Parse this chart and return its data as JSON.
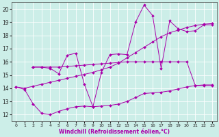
{
  "xlabel": "Windchill (Refroidissement éolien,°C)",
  "xlim": [
    -0.5,
    23.5
  ],
  "ylim": [
    11.5,
    20.5
  ],
  "xticks": [
    0,
    1,
    2,
    3,
    4,
    5,
    6,
    7,
    8,
    9,
    10,
    11,
    12,
    13,
    14,
    15,
    16,
    17,
    18,
    19,
    20,
    21,
    22,
    23
  ],
  "yticks": [
    12,
    13,
    14,
    15,
    16,
    17,
    18,
    19,
    20
  ],
  "background_color": "#cceee8",
  "grid_color": "#ffffff",
  "line_color": "#aa00aa",
  "line1_x": [
    0,
    1,
    2,
    3,
    4,
    5,
    6,
    7,
    8,
    9,
    10,
    11,
    12,
    13,
    14,
    15,
    16,
    17,
    18,
    19,
    20,
    21,
    22,
    23
  ],
  "line1_y": [
    14.1,
    14.0,
    14.15,
    14.3,
    14.45,
    14.6,
    14.75,
    14.9,
    15.05,
    15.2,
    15.4,
    15.6,
    15.9,
    16.3,
    16.7,
    17.1,
    17.5,
    17.9,
    18.2,
    18.4,
    18.6,
    18.75,
    18.85,
    18.9
  ],
  "line2_x": [
    2,
    3,
    4,
    5,
    6,
    7,
    8,
    9,
    10,
    11,
    12,
    13,
    14,
    15,
    16,
    17,
    18,
    19,
    20,
    21,
    22,
    23
  ],
  "line2_y": [
    15.6,
    15.6,
    15.6,
    15.6,
    15.65,
    15.7,
    15.75,
    15.8,
    15.85,
    15.9,
    15.95,
    16.0,
    16.0,
    16.0,
    16.0,
    16.0,
    16.0,
    16.0,
    16.0,
    14.2,
    14.2,
    14.2
  ],
  "line3_x": [
    0,
    1,
    2,
    3,
    4,
    5,
    6,
    7,
    8,
    9,
    10,
    11,
    12,
    13,
    14,
    15,
    16,
    17,
    18,
    19,
    20,
    21,
    22,
    23
  ],
  "line3_y": [
    14.1,
    13.9,
    12.8,
    12.1,
    12.0,
    12.25,
    12.45,
    12.6,
    12.65,
    12.6,
    12.65,
    12.7,
    12.8,
    13.0,
    13.3,
    13.6,
    13.65,
    13.7,
    13.8,
    13.95,
    14.1,
    14.2,
    14.25,
    14.25
  ],
  "line4_x": [
    2,
    3,
    4,
    5,
    6,
    7,
    8,
    9,
    10,
    11,
    12,
    13,
    14,
    15,
    16,
    17,
    18,
    19,
    20,
    21,
    22,
    23
  ],
  "line4_y": [
    15.6,
    15.6,
    15.5,
    15.1,
    16.5,
    16.65,
    14.3,
    12.6,
    15.2,
    16.55,
    16.6,
    16.55,
    19.0,
    20.3,
    19.5,
    15.5,
    19.1,
    18.5,
    18.3,
    18.35,
    18.8,
    18.8
  ],
  "markersize": 2.0
}
